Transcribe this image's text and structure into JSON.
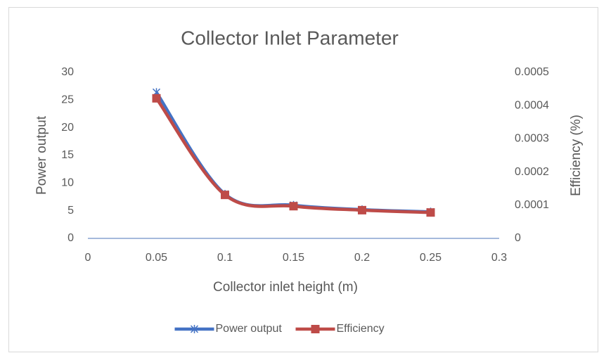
{
  "chart_data": {
    "type": "line",
    "title": "Collector Inlet Parameter",
    "x_label": "Collector inlet height (m)",
    "y_label": "Power output",
    "y2_label": "Efficiency (%)",
    "x": [
      0.05,
      0.1,
      0.15,
      0.2,
      0.25
    ],
    "series": [
      {
        "name": "Power output",
        "color": "#4472c4",
        "marker": "star",
        "values": [
          26.4,
          8.0,
          6.0,
          5.2,
          4.8
        ]
      },
      {
        "name": "Efficiency",
        "color": "#be4b48",
        "marker": "square",
        "axis": "y2",
        "values": [
          0.000422,
          0.000131,
          9.7e-05,
          8.5e-05,
          7.8e-05
        ]
      }
    ],
    "xlim": [
      0,
      0.3
    ],
    "xticks": [
      0,
      0.05,
      0.1,
      0.15,
      0.2,
      0.25,
      0.3
    ],
    "ylim": [
      0,
      30
    ],
    "yticks": [
      0,
      5,
      10,
      15,
      20,
      25,
      30
    ],
    "y2lim": [
      0,
      0.0005
    ],
    "y2ticks": [
      0,
      0.0001,
      0.0002,
      0.0003,
      0.0004,
      0.0005
    ],
    "grid": false,
    "smooth": true,
    "legend": "bottom"
  }
}
